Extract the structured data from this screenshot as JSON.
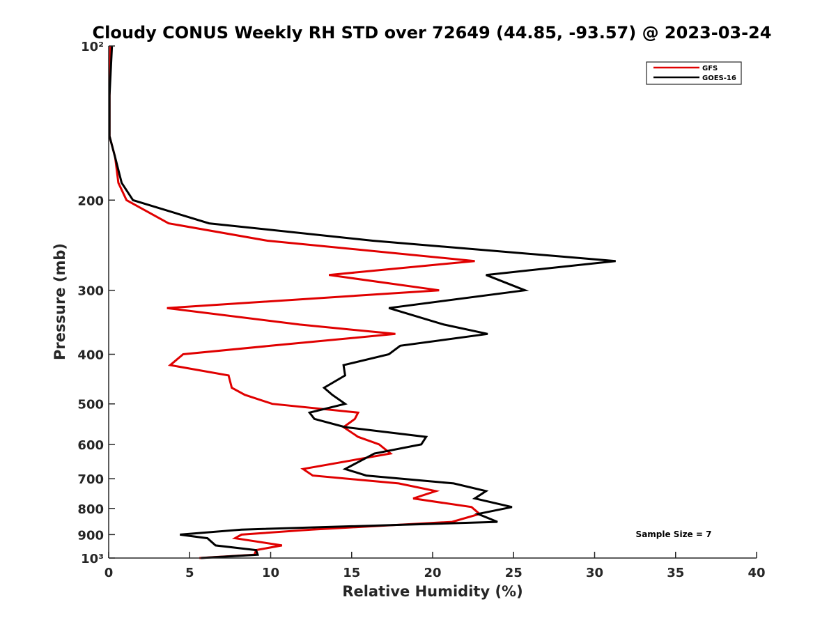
{
  "chart_data": {
    "type": "line",
    "title": "Cloudy CONUS Weekly RH STD over 72649 (44.85, -93.57) @ 2023-03-24",
    "xlabel": "Relative Humidity (%)",
    "ylabel": "Pressure (mb)",
    "xlim": [
      0,
      40
    ],
    "ylim": [
      100,
      1000
    ],
    "y_scale": "log",
    "y_reversed": true,
    "grid": false,
    "legend_position": "top-right",
    "x_ticks": [
      0,
      5,
      10,
      15,
      20,
      25,
      30,
      35,
      40
    ],
    "x_tick_labels": [
      "0",
      "5",
      "10",
      "15",
      "20",
      "25",
      "30",
      "35",
      "40"
    ],
    "y_ticks": [
      100,
      200,
      300,
      400,
      500,
      600,
      700,
      800,
      900,
      1000
    ],
    "y_tick_labels": [
      "10²",
      "200",
      "300",
      "400",
      "500",
      "600",
      "700",
      "800",
      "900",
      "10³"
    ],
    "annotation": "Sample Size = 7",
    "colors": {
      "GFS": "#e00000",
      "GOES-16": "#000000",
      "axis": "#262626"
    },
    "series": [
      {
        "name": "GFS",
        "points": [
          [
            0.1,
            100
          ],
          [
            0.05,
            125
          ],
          [
            0.05,
            150
          ],
          [
            0.4,
            165
          ],
          [
            0.6,
            185
          ],
          [
            1.1,
            200
          ],
          [
            3.7,
            222
          ],
          [
            9.8,
            240
          ],
          [
            22.6,
            263
          ],
          [
            13.6,
            280
          ],
          [
            20.4,
            300
          ],
          [
            3.6,
            325
          ],
          [
            11.8,
            350
          ],
          [
            17.7,
            365
          ],
          [
            10.0,
            385
          ],
          [
            4.6,
            400
          ],
          [
            3.8,
            420
          ],
          [
            7.4,
            440
          ],
          [
            7.6,
            465
          ],
          [
            8.4,
            480
          ],
          [
            10.1,
            500
          ],
          [
            15.4,
            520
          ],
          [
            15.2,
            535
          ],
          [
            14.5,
            555
          ],
          [
            15.4,
            580
          ],
          [
            16.7,
            600
          ],
          [
            17.4,
            625
          ],
          [
            12.0,
            670
          ],
          [
            12.6,
            690
          ],
          [
            17.9,
            715
          ],
          [
            20.2,
            740
          ],
          [
            18.8,
            765
          ],
          [
            22.4,
            795
          ],
          [
            22.9,
            820
          ],
          [
            21.2,
            850
          ],
          [
            12.5,
            880
          ],
          [
            8.2,
            900
          ],
          [
            7.8,
            915
          ],
          [
            10.7,
            945
          ],
          [
            9.1,
            965
          ],
          [
            9.0,
            985
          ],
          [
            5.6,
            1000
          ]
        ]
      },
      {
        "name": "GOES-16",
        "points": [
          [
            0.2,
            100
          ],
          [
            0.05,
            125
          ],
          [
            0.05,
            150
          ],
          [
            0.4,
            165
          ],
          [
            0.8,
            185
          ],
          [
            1.5,
            200
          ],
          [
            6.2,
            222
          ],
          [
            16.3,
            240
          ],
          [
            31.3,
            263
          ],
          [
            23.3,
            280
          ],
          [
            25.7,
            300
          ],
          [
            17.3,
            325
          ],
          [
            20.7,
            350
          ],
          [
            23.4,
            365
          ],
          [
            18.0,
            385
          ],
          [
            17.3,
            400
          ],
          [
            14.5,
            420
          ],
          [
            14.6,
            440
          ],
          [
            13.3,
            465
          ],
          [
            13.8,
            480
          ],
          [
            14.6,
            500
          ],
          [
            12.4,
            520
          ],
          [
            12.7,
            535
          ],
          [
            14.6,
            555
          ],
          [
            19.6,
            580
          ],
          [
            19.3,
            600
          ],
          [
            16.4,
            625
          ],
          [
            14.6,
            670
          ],
          [
            15.9,
            690
          ],
          [
            21.3,
            715
          ],
          [
            23.3,
            740
          ],
          [
            22.6,
            765
          ],
          [
            24.9,
            795
          ],
          [
            22.8,
            820
          ],
          [
            24.0,
            850
          ],
          [
            8.2,
            880
          ],
          [
            4.4,
            900
          ],
          [
            6.1,
            915
          ],
          [
            6.6,
            945
          ],
          [
            9.1,
            965
          ],
          [
            9.2,
            985
          ],
          [
            5.7,
            1000
          ]
        ]
      }
    ]
  }
}
